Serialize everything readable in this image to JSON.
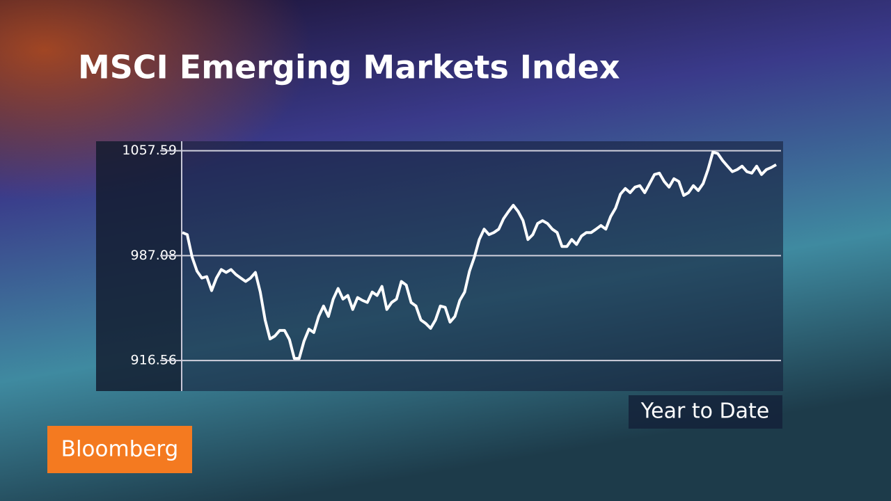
{
  "chart_data": {
    "type": "line",
    "title": "MSCI Emerging Markets Index",
    "annotation": "Year to Date",
    "color": "#ffffff",
    "values": [
      1002.6,
      1001.2,
      986.1,
      976.7,
      972.0,
      973.0,
      963.6,
      972.0,
      977.7,
      975.8,
      977.7,
      974.4,
      972.0,
      969.7,
      972.0,
      975.8,
      962.6,
      943.8,
      931.1,
      933.0,
      936.8,
      936.8,
      930.7,
      918.0,
      918.0,
      929.7,
      937.7,
      935.4,
      946.2,
      953.2,
      946.2,
      957.9,
      965.0,
      957.9,
      960.3,
      950.9,
      958.9,
      957.0,
      955.6,
      962.6,
      960.3,
      966.4,
      950.9,
      955.6,
      957.9,
      969.7,
      967.3,
      955.6,
      953.2,
      943.8,
      941.5,
      938.2,
      943.8,
      953.2,
      952.3,
      942.4,
      946.2,
      957.0,
      962.6,
      976.7,
      986.1,
      997.9,
      1004.9,
      1001.2,
      1002.6,
      1004.9,
      1012.0,
      1016.7,
      1020.9,
      1016.7,
      1010.6,
      997.9,
      1001.2,
      1008.7,
      1010.6,
      1008.7,
      1004.9,
      1002.6,
      993.2,
      993.2,
      997.9,
      994.6,
      1000.2,
      1002.6,
      1002.6,
      1004.9,
      1007.3,
      1004.9,
      1013.4,
      1019.0,
      1028.4,
      1032.2,
      1029.4,
      1033.1,
      1034.1,
      1029.4,
      1035.5,
      1041.6,
      1042.5,
      1036.9,
      1033.1,
      1038.8,
      1036.9,
      1027.5,
      1029.4,
      1034.1,
      1030.8,
      1035.5,
      1044.9,
      1056.6,
      1055.7,
      1051.0,
      1047.2,
      1043.5,
      1044.9,
      1047.2,
      1043.5,
      1042.5,
      1047.2,
      1041.6,
      1044.9,
      1046.3,
      1048.2
    ],
    "ylim": [
      897,
      1063
    ],
    "yticks": [
      916.56,
      987.08,
      1057.59
    ],
    "grid": true
  },
  "logo": "Bloomberg"
}
